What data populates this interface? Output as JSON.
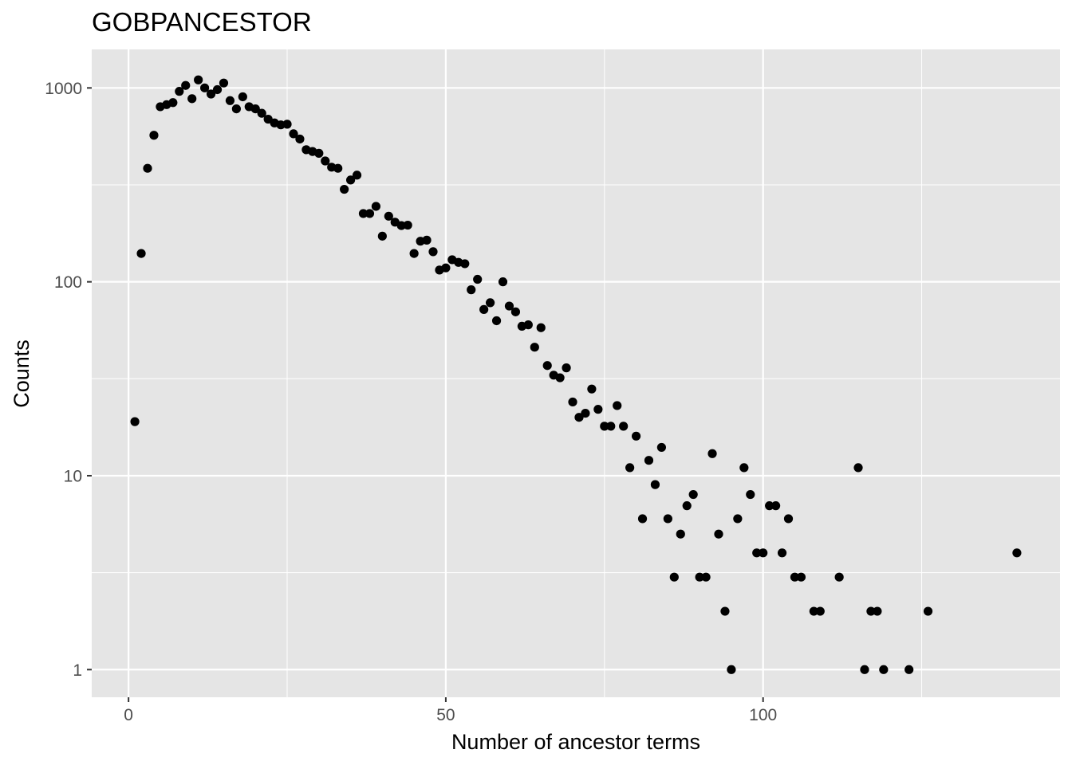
{
  "chart_data": {
    "type": "scatter",
    "title": "GOBPANCESTOR",
    "xlabel": "Number of ancestor terms",
    "ylabel": "Counts",
    "y_scale": "log10",
    "xlim": [
      -5.8,
      146.8
    ],
    "ylim": [
      0.72,
      1580
    ],
    "x_ticks": [
      0,
      50,
      100
    ],
    "y_ticks": [
      1,
      10,
      100,
      1000
    ],
    "x_tick_labels": [
      "0",
      "50",
      "100"
    ],
    "y_tick_labels": [
      "1",
      "10",
      "100",
      "1000"
    ],
    "grid": true,
    "legend": "none",
    "colors": {
      "panel": "#e5e5e5",
      "grid": "#ffffff",
      "point": "#000000"
    },
    "points": [
      {
        "x": 1,
        "y": 19
      },
      {
        "x": 2,
        "y": 140
      },
      {
        "x": 3,
        "y": 385
      },
      {
        "x": 4,
        "y": 570
      },
      {
        "x": 5,
        "y": 800
      },
      {
        "x": 6,
        "y": 820
      },
      {
        "x": 7,
        "y": 840
      },
      {
        "x": 8,
        "y": 960
      },
      {
        "x": 9,
        "y": 1030
      },
      {
        "x": 10,
        "y": 880
      },
      {
        "x": 11,
        "y": 1100
      },
      {
        "x": 12,
        "y": 1000
      },
      {
        "x": 13,
        "y": 930
      },
      {
        "x": 14,
        "y": 980
      },
      {
        "x": 15,
        "y": 1060
      },
      {
        "x": 16,
        "y": 860
      },
      {
        "x": 17,
        "y": 780
      },
      {
        "x": 18,
        "y": 900
      },
      {
        "x": 19,
        "y": 800
      },
      {
        "x": 20,
        "y": 780
      },
      {
        "x": 21,
        "y": 740
      },
      {
        "x": 22,
        "y": 690
      },
      {
        "x": 23,
        "y": 660
      },
      {
        "x": 24,
        "y": 645
      },
      {
        "x": 25,
        "y": 650
      },
      {
        "x": 26,
        "y": 580
      },
      {
        "x": 27,
        "y": 545
      },
      {
        "x": 28,
        "y": 480
      },
      {
        "x": 29,
        "y": 470
      },
      {
        "x": 30,
        "y": 460
      },
      {
        "x": 31,
        "y": 420
      },
      {
        "x": 32,
        "y": 390
      },
      {
        "x": 33,
        "y": 385
      },
      {
        "x": 34,
        "y": 300
      },
      {
        "x": 35,
        "y": 335
      },
      {
        "x": 36,
        "y": 355
      },
      {
        "x": 37,
        "y": 225
      },
      {
        "x": 38,
        "y": 225
      },
      {
        "x": 39,
        "y": 245
      },
      {
        "x": 40,
        "y": 172
      },
      {
        "x": 41,
        "y": 218
      },
      {
        "x": 42,
        "y": 203
      },
      {
        "x": 43,
        "y": 195
      },
      {
        "x": 44,
        "y": 196
      },
      {
        "x": 45,
        "y": 140
      },
      {
        "x": 46,
        "y": 162
      },
      {
        "x": 47,
        "y": 164
      },
      {
        "x": 48,
        "y": 143
      },
      {
        "x": 49,
        "y": 115
      },
      {
        "x": 50,
        "y": 118
      },
      {
        "x": 51,
        "y": 130
      },
      {
        "x": 52,
        "y": 126
      },
      {
        "x": 53,
        "y": 124
      },
      {
        "x": 54,
        "y": 91
      },
      {
        "x": 55,
        "y": 103
      },
      {
        "x": 56,
        "y": 72
      },
      {
        "x": 57,
        "y": 78
      },
      {
        "x": 58,
        "y": 63
      },
      {
        "x": 59,
        "y": 100
      },
      {
        "x": 60,
        "y": 75
      },
      {
        "x": 61,
        "y": 70
      },
      {
        "x": 62,
        "y": 59
      },
      {
        "x": 63,
        "y": 60
      },
      {
        "x": 64,
        "y": 46
      },
      {
        "x": 65,
        "y": 58
      },
      {
        "x": 66,
        "y": 37
      },
      {
        "x": 67,
        "y": 33
      },
      {
        "x": 68,
        "y": 32
      },
      {
        "x": 69,
        "y": 36
      },
      {
        "x": 70,
        "y": 24
      },
      {
        "x": 71,
        "y": 20
      },
      {
        "x": 72,
        "y": 21
      },
      {
        "x": 73,
        "y": 28
      },
      {
        "x": 74,
        "y": 22
      },
      {
        "x": 75,
        "y": 18
      },
      {
        "x": 76,
        "y": 18
      },
      {
        "x": 77,
        "y": 23
      },
      {
        "x": 78,
        "y": 18
      },
      {
        "x": 79,
        "y": 11
      },
      {
        "x": 80,
        "y": 16
      },
      {
        "x": 81,
        "y": 6
      },
      {
        "x": 82,
        "y": 12
      },
      {
        "x": 83,
        "y": 9
      },
      {
        "x": 84,
        "y": 14
      },
      {
        "x": 85,
        "y": 6
      },
      {
        "x": 86,
        "y": 3
      },
      {
        "x": 87,
        "y": 5
      },
      {
        "x": 88,
        "y": 7
      },
      {
        "x": 89,
        "y": 8
      },
      {
        "x": 90,
        "y": 3
      },
      {
        "x": 91,
        "y": 3
      },
      {
        "x": 92,
        "y": 13
      },
      {
        "x": 93,
        "y": 5
      },
      {
        "x": 94,
        "y": 2
      },
      {
        "x": 95,
        "y": 1
      },
      {
        "x": 96,
        "y": 6
      },
      {
        "x": 97,
        "y": 11
      },
      {
        "x": 98,
        "y": 8
      },
      {
        "x": 99,
        "y": 4
      },
      {
        "x": 100,
        "y": 4
      },
      {
        "x": 101,
        "y": 7
      },
      {
        "x": 102,
        "y": 7
      },
      {
        "x": 103,
        "y": 4
      },
      {
        "x": 104,
        "y": 6
      },
      {
        "x": 105,
        "y": 3
      },
      {
        "x": 106,
        "y": 3
      },
      {
        "x": 108,
        "y": 2
      },
      {
        "x": 109,
        "y": 2
      },
      {
        "x": 112,
        "y": 3
      },
      {
        "x": 115,
        "y": 11
      },
      {
        "x": 116,
        "y": 1
      },
      {
        "x": 117,
        "y": 2
      },
      {
        "x": 118,
        "y": 2
      },
      {
        "x": 119,
        "y": 1
      },
      {
        "x": 123,
        "y": 1
      },
      {
        "x": 126,
        "y": 2
      },
      {
        "x": 140,
        "y": 4
      }
    ]
  }
}
